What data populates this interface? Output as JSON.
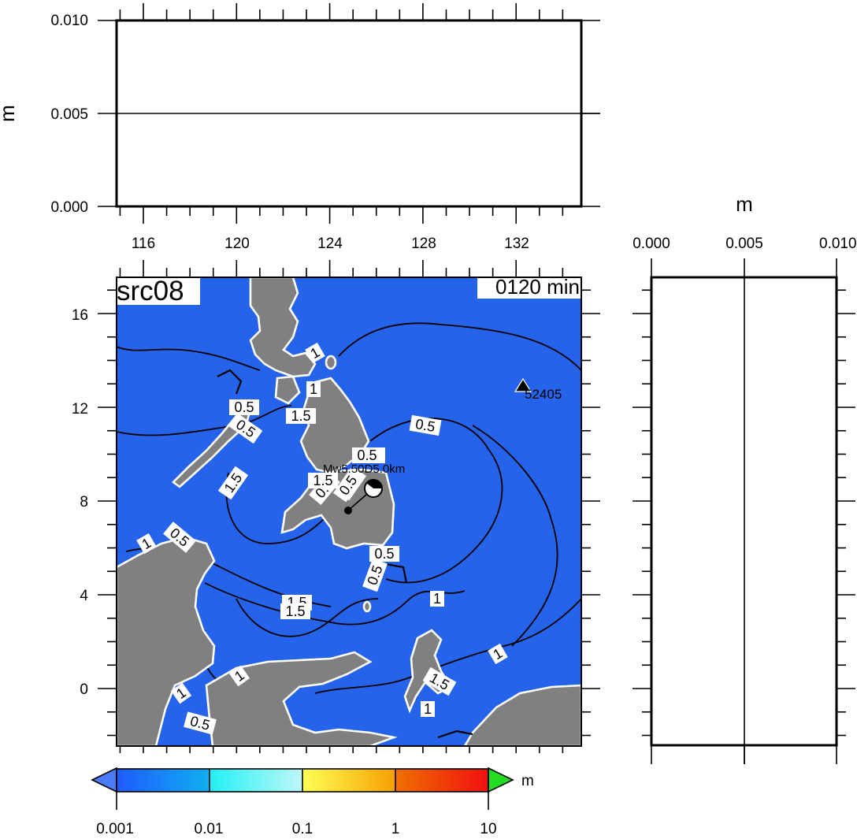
{
  "map": {
    "title": "src08",
    "time_label": "0120 min",
    "station": "52405",
    "source_label": "Mw5.50D5.0km",
    "lon_ticks": [
      "116",
      "120",
      "124",
      "128",
      "132"
    ],
    "lat_ticks": [
      "16",
      "12",
      "8",
      "4",
      "0"
    ],
    "contour_labels": [
      "1",
      "1",
      "0.5",
      "0.5",
      "1.5",
      "1.5",
      "0.5",
      "1.5",
      "0.5",
      "0.5",
      "1",
      "0.5",
      "1",
      "0.5",
      "0.5",
      "1.5",
      "1.5",
      "1",
      "1",
      "1",
      "0.5",
      "1",
      "1.5",
      "0.5",
      "1.5",
      "0.5"
    ],
    "colors": {
      "ocean": "#2563eb",
      "land": "#808080"
    }
  },
  "top_panel": {
    "y_unit": "m",
    "y_ticks": [
      "0.010",
      "0.005",
      "0.000"
    ]
  },
  "side_panel": {
    "x_unit": "m",
    "x_ticks": [
      "0.000",
      "0.005",
      "0.010"
    ]
  },
  "colorbar": {
    "unit": "m",
    "ticks": [
      "0.001",
      "0.01",
      "0.1",
      "1",
      "10"
    ],
    "under_color": "#4a7cf7",
    "over_color": "#22dd22"
  }
}
